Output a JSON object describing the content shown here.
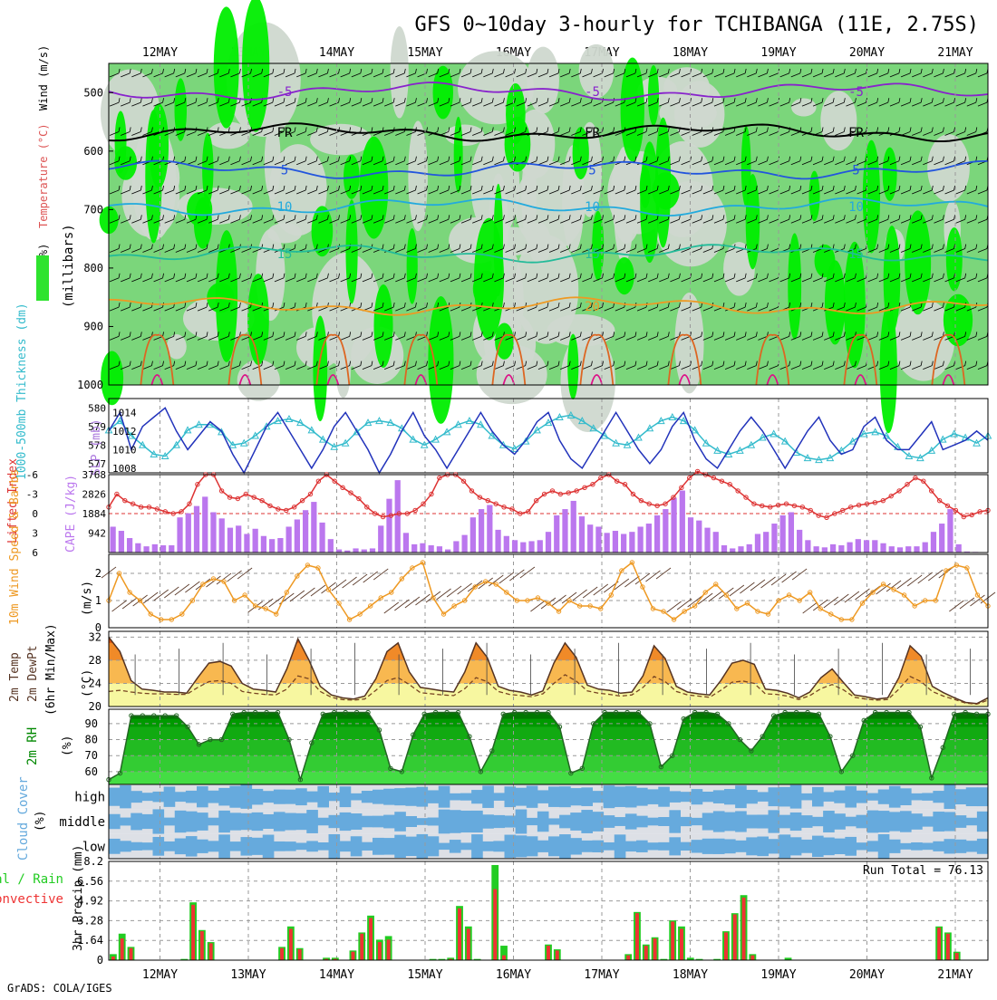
{
  "title": "GFS 0~10day 3-hourly for TCHIBANGA (11E, 2.75S)",
  "footer": "GrADS: COLA/IGES",
  "day_labels": [
    "12MAY",
    "13MAY",
    "14MAY",
    "15MAY",
    "16MAY",
    "17MAY",
    "18MAY",
    "19MAY",
    "20MAY",
    "21MAY"
  ],
  "colors": {
    "rh_light": "#cfd8cf",
    "rh_mid": "#7bd67b",
    "rh_dark": "#2ee32e",
    "rh_bright": "#00ee00",
    "iso_m5": "#8822cc",
    "iso_fr": "#000000",
    "iso_5": "#2255dd",
    "iso_10": "#22aadd",
    "iso_15": "#22bb99",
    "iso_20": "#ee9922",
    "iso_25": "#dd6622",
    "iso_30": "#dd1188",
    "slp": "#2233bb",
    "thick": "#33bbcc",
    "li": "#dd3333",
    "cape": "#bb77ee",
    "wind": "#ee9922",
    "temp": "#553322",
    "dew": "#774422",
    "rh2m": "#008800",
    "cloud": "#66aadd",
    "cloud_bg": "#f4f4fa",
    "rain": "#ee3333",
    "total": "#22cc22"
  },
  "chart_data": [
    {
      "id": "upper_air",
      "type": "heatmap",
      "ylabel_wind": "Wind (m/s)",
      "ylabel_temp": "Temperature (°C)",
      "ylabel_rh": "RH (%)",
      "ylabel_units": "(millibars)",
      "yticks": [
        "500",
        "600",
        "700",
        "800",
        "900",
        "1000"
      ],
      "ylim": [
        1000,
        450
      ],
      "isotherm_labels": {
        "m5": "-5",
        "fr": "FR",
        "p5": "5",
        "p10": "10",
        "p15": "15",
        "p20": "20"
      },
      "isotherms": [
        {
          "key": "m5",
          "level": 498
        },
        {
          "key": "fr",
          "level": 568
        },
        {
          "key": "p5",
          "level": 632
        },
        {
          "key": "p10",
          "level": 695
        },
        {
          "key": "p15",
          "level": 775
        },
        {
          "key": "p20",
          "level": 865
        }
      ],
      "x_days": [
        0,
        10
      ]
    },
    {
      "id": "slp_thickness",
      "type": "line",
      "ylabel_left": "1000-500mb Thickness (dm)",
      "ylabel_right": "SLP (mb)",
      "left_ticks": [
        "580",
        "579",
        "578",
        "577"
      ],
      "right_ticks": [
        "1014",
        "1012",
        "1010",
        "1008"
      ],
      "slp_ylim": [
        1007.5,
        1015.5
      ],
      "thick_ylim": [
        576.5,
        580.5
      ],
      "slp": [
        1012,
        1014,
        1010,
        1012.5,
        1013.5,
        1014.5,
        1012,
        1010,
        1011.5,
        1013,
        1012,
        1009.5,
        1007.5,
        1010,
        1012.5,
        1014,
        1012,
        1010,
        1008,
        1010,
        1012.5,
        1014,
        1012,
        1010,
        1007.5,
        1009.5,
        1012,
        1014,
        1011.5,
        1010,
        1008,
        1010,
        1012,
        1014,
        1012,
        1010.5,
        1009.5,
        1011,
        1013,
        1014,
        1011,
        1009,
        1008,
        1010,
        1012,
        1014,
        1012,
        1010,
        1008.5,
        1010,
        1012.5,
        1014,
        1011,
        1009,
        1008,
        1010,
        1012,
        1013.5,
        1012,
        1010,
        1008,
        1010,
        1012,
        1013.5,
        1011,
        1009.5,
        1010,
        1012.5,
        1013.5,
        1011,
        1010,
        1010,
        1011.5,
        1013,
        1010,
        1010.5,
        1011,
        1012,
        1011
      ],
      "thickness": [
        578.8,
        579.3,
        578.5,
        578.0,
        577.5,
        577.4,
        578.0,
        578.8,
        579.1,
        579.1,
        578.7,
        578.0,
        578.1,
        578.5,
        579.0,
        579.3,
        579.4,
        579.2,
        578.8,
        578.3,
        577.9,
        578.1,
        578.7,
        579.2,
        579.3,
        579.2,
        578.9,
        578.3,
        578.0,
        578.3,
        578.7,
        579.1,
        579.3,
        579.1,
        578.5,
        578.0,
        577.8,
        578.2,
        578.8,
        579.2,
        579.5,
        579.6,
        579.3,
        578.9,
        578.5,
        578.1,
        578.0,
        578.4,
        578.9,
        579.3,
        579.5,
        579.3,
        578.8,
        578.1,
        577.7,
        577.5,
        577.7,
        578.0,
        578.4,
        578.6,
        578.2,
        577.6,
        577.3,
        577.2,
        577.3,
        577.7,
        578.2,
        578.6,
        578.7,
        578.5,
        577.9,
        577.4,
        577.3,
        577.7,
        578.3,
        578.6,
        578.4,
        578.1,
        578.5
      ]
    },
    {
      "id": "li_cape",
      "type": "bar",
      "ylabel_left": "Lifted Index",
      "ylabel_right": "CAPE (J/kg)",
      "li_ticks": [
        "-6",
        "-3",
        "0",
        "3",
        "6"
      ],
      "cape_ticks": [
        "3768",
        "2826",
        "1884",
        "942"
      ],
      "li_ylim": [
        6,
        -6
      ],
      "cape_ylim": [
        0,
        3768
      ],
      "cape": [
        1250,
        1050,
        700,
        450,
        300,
        400,
        350,
        350,
        1700,
        1900,
        2250,
        2700,
        1950,
        1650,
        1200,
        1300,
        900,
        1150,
        800,
        650,
        700,
        1250,
        1600,
        2050,
        2450,
        1450,
        650,
        150,
        100,
        200,
        150,
        200,
        1300,
        2600,
        3500,
        950,
        400,
        450,
        350,
        300,
        150,
        550,
        850,
        1700,
        2100,
        2300,
        1100,
        800,
        600,
        500,
        550,
        600,
        1000,
        1800,
        2100,
        2500,
        1750,
        1350,
        1250,
        950,
        1050,
        900,
        1000,
        1250,
        1400,
        1800,
        2100,
        2650,
        3000,
        1700,
        1550,
        1200,
        1000,
        350,
        200,
        300,
        400,
        900,
        1000,
        1400,
        1800,
        1950,
        1100,
        600,
        300,
        250,
        400,
        350,
        500,
        650,
        600,
        600,
        450,
        300,
        250,
        300,
        300,
        500,
        1000,
        1400,
        2100,
        400,
        50,
        30,
        20
      ],
      "li": [
        -1,
        -3,
        -2,
        -1.5,
        -1,
        -1,
        -0.7,
        -0.3,
        0,
        -0.3,
        -1.5,
        -4.5,
        -6,
        -6,
        -3.5,
        -2.5,
        -2.3,
        -3,
        -2.5,
        -2,
        -1.2,
        -0.7,
        -0.5,
        -1,
        -2,
        -3,
        -5,
        -6,
        -5,
        -4,
        -3.2,
        -2.3,
        -1,
        0,
        0.5,
        0.3,
        0,
        0,
        -0.5,
        -1.5,
        -3,
        -5.5,
        -6,
        -6,
        -5,
        -3.5,
        -2.5,
        -2,
        -1.5,
        -1,
        -0.7,
        0,
        -0.3,
        -2,
        -3,
        -3.5,
        -3,
        -3.2,
        -3.5,
        -4,
        -4.5,
        -5.5,
        -6,
        -5,
        -4.5,
        -3,
        -2,
        -1.5,
        -1.2,
        -1.5,
        -2.5,
        -4,
        -5.5,
        -6.5,
        -6,
        -5.5,
        -5,
        -4.5,
        -3.5,
        -2.5,
        -1.5,
        -1.2,
        -1,
        -1.3,
        -1.5,
        -1.2,
        -1,
        -0.5,
        0.3,
        0.6,
        0,
        -0.5,
        -1,
        -1.3,
        -1.5,
        -1.7,
        -2,
        -2.7,
        -3.5,
        -4.5,
        -5.5,
        -5,
        -3.5,
        -2,
        -1.2,
        -0.5,
        0.5,
        0.2,
        -0.3,
        -0.5
      ]
    },
    {
      "id": "wind10m",
      "type": "line",
      "ylabel": "10m Wind Speed & Barbs",
      "yunits": "(m/s)",
      "yticks": [
        "2",
        "1",
        "0"
      ],
      "ylim": [
        0,
        2.7
      ],
      "speed": [
        1.0,
        2.0,
        1.3,
        1.0,
        0.5,
        0.3,
        0.3,
        0.5,
        1.0,
        1.6,
        1.8,
        1.7,
        1.0,
        1.2,
        0.8,
        0.7,
        0.5,
        1.3,
        1.9,
        2.3,
        2.2,
        1.4,
        0.9,
        0.3,
        0.5,
        0.8,
        1.1,
        1.3,
        1.8,
        2.2,
        2.4,
        1.1,
        0.5,
        0.8,
        1.0,
        1.5,
        1.7,
        1.6,
        1.3,
        1.0,
        1.0,
        1.1,
        0.9,
        0.6,
        1.0,
        0.8,
        0.8,
        0.7,
        1.2,
        2.1,
        2.4,
        1.5,
        0.7,
        0.6,
        0.3,
        0.6,
        0.8,
        1.3,
        1.6,
        1.2,
        0.7,
        0.9,
        0.6,
        0.5,
        1.0,
        1.2,
        1.0,
        1.3,
        0.7,
        0.5,
        0.3,
        0.3,
        0.9,
        1.3,
        1.6,
        1.4,
        1.2,
        0.8,
        1.0,
        1.0,
        2.1,
        2.3,
        2.2,
        1.2,
        0.8
      ]
    },
    {
      "id": "temp2m",
      "type": "area",
      "ylabel": "2m Temp 2m DewPt (6hr Min/Max) (°C)",
      "yticks": [
        "32",
        "28",
        "24",
        "20"
      ],
      "ylim": [
        20,
        33
      ],
      "temp": [
        32,
        29.5,
        24.5,
        23,
        22.8,
        22.5,
        22.5,
        22.3,
        25,
        27.5,
        27.8,
        27,
        24,
        23,
        22.8,
        22.5,
        26.5,
        31.7,
        28,
        23.5,
        22,
        21.5,
        21.3,
        21.8,
        24.8,
        29.5,
        31,
        26,
        23.3,
        23,
        22.7,
        22.5,
        26,
        31,
        28.5,
        23.5,
        22.8,
        22.5,
        22,
        22.7,
        27.5,
        31,
        28.5,
        23.7,
        23,
        22.8,
        22.3,
        22.5,
        25.3,
        30.5,
        28.3,
        23.5,
        22.5,
        22.2,
        22,
        24.5,
        27.5,
        28,
        27.3,
        23,
        22.8,
        22.3,
        21.5,
        22.5,
        25,
        26.5,
        24.2,
        22,
        21.7,
        21.3,
        21.5,
        25,
        30.5,
        28.7,
        23.5,
        22.4,
        21.5,
        20.7,
        20.5,
        21.5
      ],
      "dew": [
        22.6,
        22.8,
        22.5,
        22.3,
        22.2,
        22.2,
        22.1,
        22.1,
        23.3,
        24.3,
        24.5,
        24,
        22.6,
        22.3,
        22.1,
        22,
        23,
        25.3,
        24.8,
        22.6,
        21.6,
        21.2,
        21.1,
        21.3,
        22.8,
        24.5,
        25,
        23.8,
        22.4,
        22.2,
        22,
        21.9,
        23.1,
        25,
        24.3,
        22.6,
        22.1,
        21.9,
        21.7,
        22.2,
        24,
        25.5,
        24.4,
        22.7,
        22.3,
        22.1,
        21.8,
        22,
        23.3,
        25.2,
        24.3,
        22.6,
        22,
        21.8,
        21.6,
        22.8,
        24.2,
        24.4,
        24,
        22.2,
        22.1,
        21.8,
        21.2,
        21.9,
        23.1,
        23.8,
        22.9,
        21.6,
        21.3,
        21.1,
        21.2,
        23,
        25.2,
        24.3,
        22.6,
        21.8,
        21.2,
        20.6,
        20.4,
        21.1
      ]
    },
    {
      "id": "rh2m",
      "type": "area",
      "ylabel": "2m RH",
      "yunits": "(%)",
      "yticks": [
        "90",
        "80",
        "70",
        "60"
      ],
      "ylim": [
        52,
        99
      ],
      "rh": [
        55,
        59,
        95,
        95,
        95,
        95,
        95,
        88,
        77,
        80,
        80,
        96,
        97,
        97,
        97,
        97,
        80,
        55,
        78,
        96,
        97,
        97,
        97,
        97,
        86,
        62,
        60,
        83,
        96,
        97,
        97,
        97,
        82,
        60,
        73,
        96,
        97,
        97,
        97,
        97,
        88,
        59,
        62,
        90,
        97,
        97,
        97,
        97,
        90,
        63,
        70,
        93,
        97,
        97,
        96,
        90,
        80,
        73,
        82,
        95,
        97,
        97,
        97,
        96,
        82,
        60,
        70,
        92,
        97,
        97,
        97,
        97,
        88,
        56,
        75,
        96,
        97,
        96,
        96
      ]
    },
    {
      "id": "cloud",
      "type": "area",
      "ylabel": "Cloud Cover",
      "yunits": "(%)",
      "levels": [
        "high",
        "middle",
        "low"
      ]
    },
    {
      "id": "precip",
      "type": "bar",
      "ylabel": "3hr Precip (mm)",
      "legend_total": "Total / Rain",
      "legend_conv": "Convective",
      "yticks": [
        "8.2",
        "6.56",
        "4.92",
        "3.28",
        "1.64",
        "0"
      ],
      "ylim": [
        0,
        8.2
      ],
      "run_total": "Run Total = 76.13",
      "total": [
        0.5,
        2.2,
        1.1,
        0,
        0,
        0,
        0,
        0,
        0.1,
        4.8,
        2.5,
        1.5,
        0,
        0,
        0,
        0,
        0,
        0,
        0,
        1.1,
        2.8,
        1.0,
        0,
        0,
        0.2,
        0.2,
        0,
        0.8,
        2.3,
        3.7,
        1.7,
        2.0,
        0,
        0,
        0,
        0,
        0.1,
        0.1,
        0.2,
        4.5,
        2.8,
        0.1,
        0,
        7.9,
        1.2,
        0,
        0,
        0,
        0,
        1.3,
        0.9,
        0,
        0,
        0,
        0,
        0,
        0,
        0,
        0.5,
        4.0,
        1.3,
        1.9,
        0.1,
        3.3,
        2.8,
        0.2,
        0.1,
        0,
        0.1,
        2.4,
        3.9,
        5.4,
        0.5,
        0,
        0,
        0,
        0.2,
        0,
        0,
        0,
        0,
        0,
        0,
        0,
        0,
        0,
        0,
        0,
        0,
        0,
        0,
        0,
        0,
        2.8,
        2.3,
        0.7,
        0,
        0,
        0
      ],
      "conv": [
        0.3,
        1.8,
        1.0,
        0,
        0,
        0,
        0,
        0,
        0,
        4.6,
        2.4,
        1.4,
        0,
        0,
        0,
        0,
        0,
        0,
        0,
        1.0,
        2.6,
        0.9,
        0,
        0,
        0.1,
        0.1,
        0,
        0.7,
        2.2,
        3.5,
        1.5,
        1.7,
        0,
        0,
        0,
        0,
        0,
        0,
        0.1,
        4.3,
        2.6,
        0,
        0,
        5.9,
        0.4,
        0,
        0,
        0,
        0,
        1.2,
        0.8,
        0,
        0,
        0,
        0,
        0,
        0,
        0,
        0.4,
        3.9,
        1.2,
        1.8,
        0,
        3.2,
        2.6,
        0,
        0,
        0,
        0,
        2.3,
        3.8,
        5.2,
        0.4,
        0,
        0,
        0,
        0,
        0,
        0,
        0,
        0,
        0,
        0,
        0,
        0,
        0,
        0,
        0,
        0,
        0,
        0,
        0,
        0,
        2.7,
        2.2,
        0.6,
        0,
        0,
        0
      ]
    }
  ]
}
